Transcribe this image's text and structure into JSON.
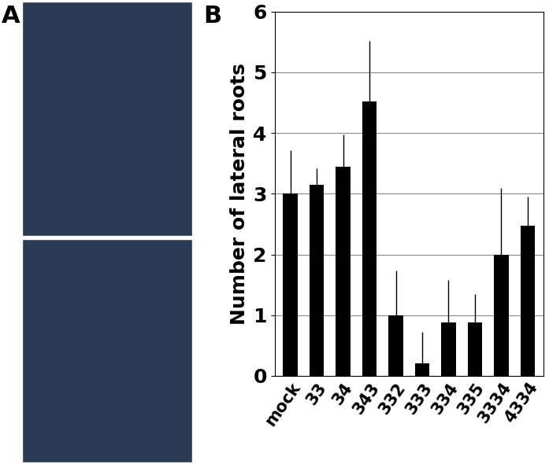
{
  "panel_labels": [
    "A",
    "B"
  ],
  "chart_data": {
    "type": "bar",
    "y_label": "Number of lateral roots",
    "categories": [
      "mock",
      "33",
      "34",
      "343",
      "332",
      "333",
      "334",
      "335",
      "3334",
      "4334"
    ],
    "values": [
      3.0,
      3.15,
      3.45,
      4.52,
      1.0,
      0.2,
      0.88,
      0.88,
      2.0,
      2.47
    ],
    "errors": [
      0.72,
      0.27,
      0.52,
      1.0,
      0.73,
      0.53,
      0.7,
      0.47,
      1.1,
      0.48
    ],
    "color": "#000000",
    "ylim": [
      0,
      6
    ],
    "yticks": [
      0,
      1,
      2,
      3,
      4,
      5,
      6
    ],
    "grid": true
  }
}
